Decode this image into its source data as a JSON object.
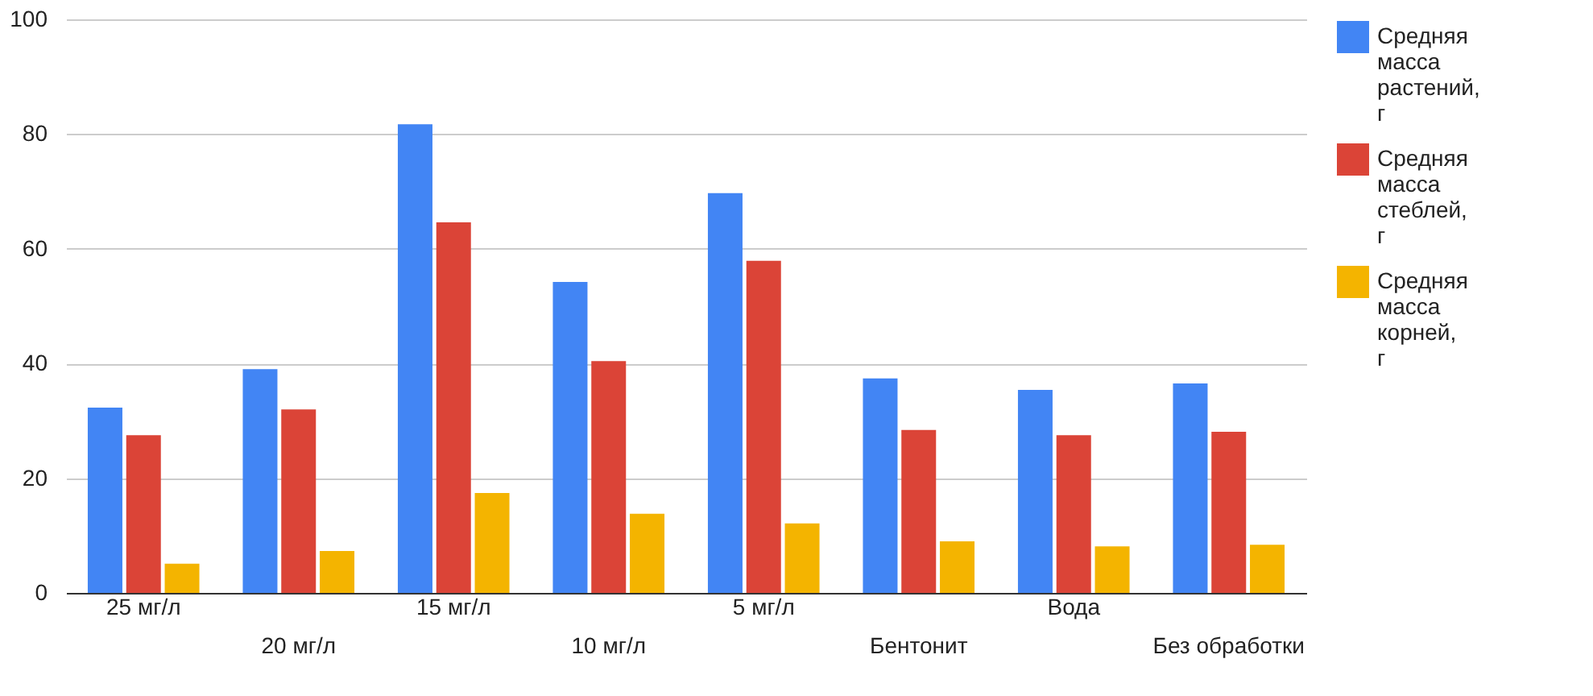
{
  "chart_data": {
    "type": "bar",
    "categories": [
      "25 мг/л",
      "20 мг/л",
      "15 мг/л",
      "10 мг/л",
      "5 мг/л",
      "Бентонит",
      "Вода",
      "Без обработки"
    ],
    "series": [
      {
        "name": "Средняя масса растений, г",
        "color": "#4285f4",
        "values": [
          32.3,
          39.0,
          81.7,
          54.2,
          69.7,
          37.4,
          35.4,
          36.5
        ]
      },
      {
        "name": "Средняя масса стеблей, г",
        "color": "#db4437",
        "values": [
          27.5,
          32.0,
          64.6,
          40.4,
          57.9,
          28.4,
          27.5,
          28.1
        ]
      },
      {
        "name": "Средняя масса корней, г",
        "color": "#f4b400",
        "values": [
          5.1,
          7.3,
          17.4,
          13.8,
          12.1,
          9.0,
          8.1,
          8.4
        ]
      }
    ],
    "ylim": [
      0,
      100
    ],
    "yticks": [
      0,
      20,
      40,
      60,
      80,
      100
    ],
    "grid": "y",
    "legend": "right"
  }
}
